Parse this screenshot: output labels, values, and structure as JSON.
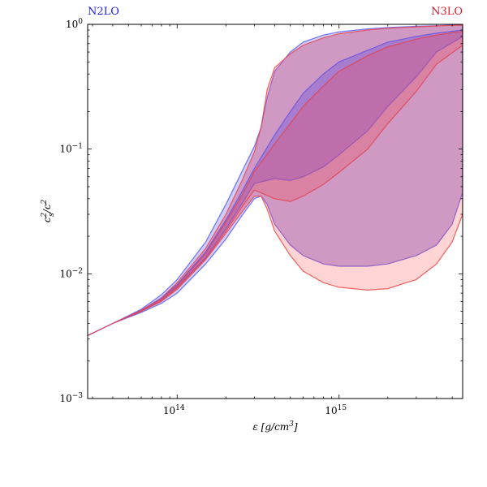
{
  "chart_data": {
    "type": "area",
    "title": "",
    "corner_labels": {
      "left": {
        "text": "N2LO",
        "color": "#1f1fdd"
      },
      "right": {
        "text": "N3LO",
        "color": "#e0182f"
      }
    },
    "xlabel": {
      "base": "ε [g/cm",
      "sup": "3",
      "end": "]"
    },
    "ylabel": {
      "c": "c",
      "sub": "s",
      "sup": "2",
      "den": "/c",
      "den_sup": "2"
    },
    "x_scale": "log",
    "y_scale": "log",
    "xlim": [
      28000000000000.0,
      5800000000000000.0
    ],
    "ylim": [
      0.001,
      1
    ],
    "x_major_ticks": [
      {
        "value": 100000000000000.0,
        "base": "10",
        "exp": "14"
      },
      {
        "value": 1000000000000000.0,
        "base": "10",
        "exp": "15"
      }
    ],
    "y_major_ticks": [
      {
        "value": 0.001,
        "base": "10",
        "exp": "−3"
      },
      {
        "value": 0.01,
        "base": "10",
        "exp": "−2"
      },
      {
        "value": 0.1,
        "base": "10",
        "exp": "−1"
      },
      {
        "value": 1,
        "base": "10",
        "exp": "0"
      }
    ],
    "grid": false,
    "colors": {
      "n2lo_fill": "#4444ff",
      "n2lo_edge": "#5a5af5",
      "n3lo_fill": "#ff5a5a",
      "n3lo_edge": "#f04848",
      "overlap_tint": "#a0307a"
    },
    "series": [
      {
        "key": "n2lo_outer",
        "legend": "N2LO",
        "color": "n2lo",
        "x": [
          28000000000000.0,
          40000000000000.0,
          60000000000000.0,
          80000000000000.0,
          100000000000000.0,
          150000000000000.0,
          200000000000000.0,
          250000000000000.0,
          300000000000000.0,
          330000000000000.0,
          360000000000000.0,
          400000000000000.0,
          500000000000000.0,
          600000000000000.0,
          800000000000000.0,
          1000000000000000.0,
          1500000000000000.0,
          2000000000000000.0,
          3000000000000000.0,
          4000000000000000.0,
          5000000000000000.0,
          5800000000000000.0
        ],
        "upper": [
          0.0032,
          0.004,
          0.0052,
          0.0068,
          0.009,
          0.018,
          0.036,
          0.065,
          0.105,
          0.15,
          0.26,
          0.42,
          0.6,
          0.72,
          0.82,
          0.87,
          0.92,
          0.945,
          0.965,
          0.975,
          0.985,
          0.99
        ],
        "lower": [
          0.0032,
          0.004,
          0.0049,
          0.0058,
          0.007,
          0.012,
          0.019,
          0.029,
          0.04,
          0.042,
          0.036,
          0.025,
          0.017,
          0.014,
          0.012,
          0.0115,
          0.0115,
          0.012,
          0.014,
          0.017,
          0.025,
          0.045
        ]
      },
      {
        "key": "n3lo_outer",
        "legend": "N3LO",
        "color": "n3lo",
        "x": [
          28000000000000.0,
          40000000000000.0,
          60000000000000.0,
          80000000000000.0,
          100000000000000.0,
          150000000000000.0,
          200000000000000.0,
          250000000000000.0,
          300000000000000.0,
          330000000000000.0,
          360000000000000.0,
          400000000000000.0,
          500000000000000.0,
          600000000000000.0,
          800000000000000.0,
          1000000000000000.0,
          1500000000000000.0,
          2000000000000000.0,
          3000000000000000.0,
          4000000000000000.0,
          5000000000000000.0,
          5800000000000000.0
        ],
        "upper": [
          0.0032,
          0.004,
          0.0051,
          0.0064,
          0.0085,
          0.016,
          0.03,
          0.055,
          0.095,
          0.15,
          0.3,
          0.45,
          0.58,
          0.68,
          0.78,
          0.84,
          0.9,
          0.93,
          0.955,
          0.97,
          0.98,
          0.985
        ],
        "lower": [
          0.0032,
          0.004,
          0.005,
          0.006,
          0.0075,
          0.013,
          0.021,
          0.031,
          0.042,
          0.042,
          0.033,
          0.022,
          0.014,
          0.0105,
          0.0085,
          0.0078,
          0.0074,
          0.0076,
          0.009,
          0.012,
          0.018,
          0.03
        ]
      },
      {
        "key": "n2lo_inner",
        "legend": "N2LO",
        "color": "n2lo",
        "x": [
          28000000000000.0,
          40000000000000.0,
          60000000000000.0,
          80000000000000.0,
          100000000000000.0,
          150000000000000.0,
          200000000000000.0,
          250000000000000.0,
          300000000000000.0,
          400000000000000.0,
          500000000000000.0,
          600000000000000.0,
          800000000000000.0,
          1000000000000000.0,
          1500000000000000.0,
          2000000000000000.0,
          3000000000000000.0,
          4000000000000000.0,
          5800000000000000.0
        ],
        "upper": [
          0.0032,
          0.004,
          0.0051,
          0.0064,
          0.0082,
          0.015,
          0.027,
          0.045,
          0.07,
          0.13,
          0.2,
          0.28,
          0.4,
          0.5,
          0.62,
          0.72,
          0.8,
          0.85,
          0.9
        ],
        "lower": [
          0.0032,
          0.004,
          0.005,
          0.0061,
          0.0078,
          0.0135,
          0.023,
          0.036,
          0.053,
          0.058,
          0.056,
          0.06,
          0.072,
          0.09,
          0.14,
          0.22,
          0.38,
          0.6,
          0.8
        ]
      },
      {
        "key": "n3lo_inner",
        "legend": "N3LO",
        "color": "n3lo",
        "x": [
          28000000000000.0,
          40000000000000.0,
          60000000000000.0,
          80000000000000.0,
          100000000000000.0,
          150000000000000.0,
          200000000000000.0,
          250000000000000.0,
          300000000000000.0,
          400000000000000.0,
          500000000000000.0,
          600000000000000.0,
          800000000000000.0,
          1000000000000000.0,
          1500000000000000.0,
          2000000000000000.0,
          3000000000000000.0,
          4000000000000000.0,
          5800000000000000.0
        ],
        "upper": [
          0.0032,
          0.004,
          0.0051,
          0.0063,
          0.008,
          0.0145,
          0.026,
          0.042,
          0.066,
          0.11,
          0.16,
          0.22,
          0.32,
          0.42,
          0.56,
          0.66,
          0.76,
          0.82,
          0.88
        ],
        "lower": [
          0.0032,
          0.004,
          0.005,
          0.0061,
          0.0077,
          0.0132,
          0.022,
          0.034,
          0.047,
          0.04,
          0.038,
          0.042,
          0.052,
          0.065,
          0.1,
          0.16,
          0.29,
          0.48,
          0.68
        ]
      }
    ]
  }
}
